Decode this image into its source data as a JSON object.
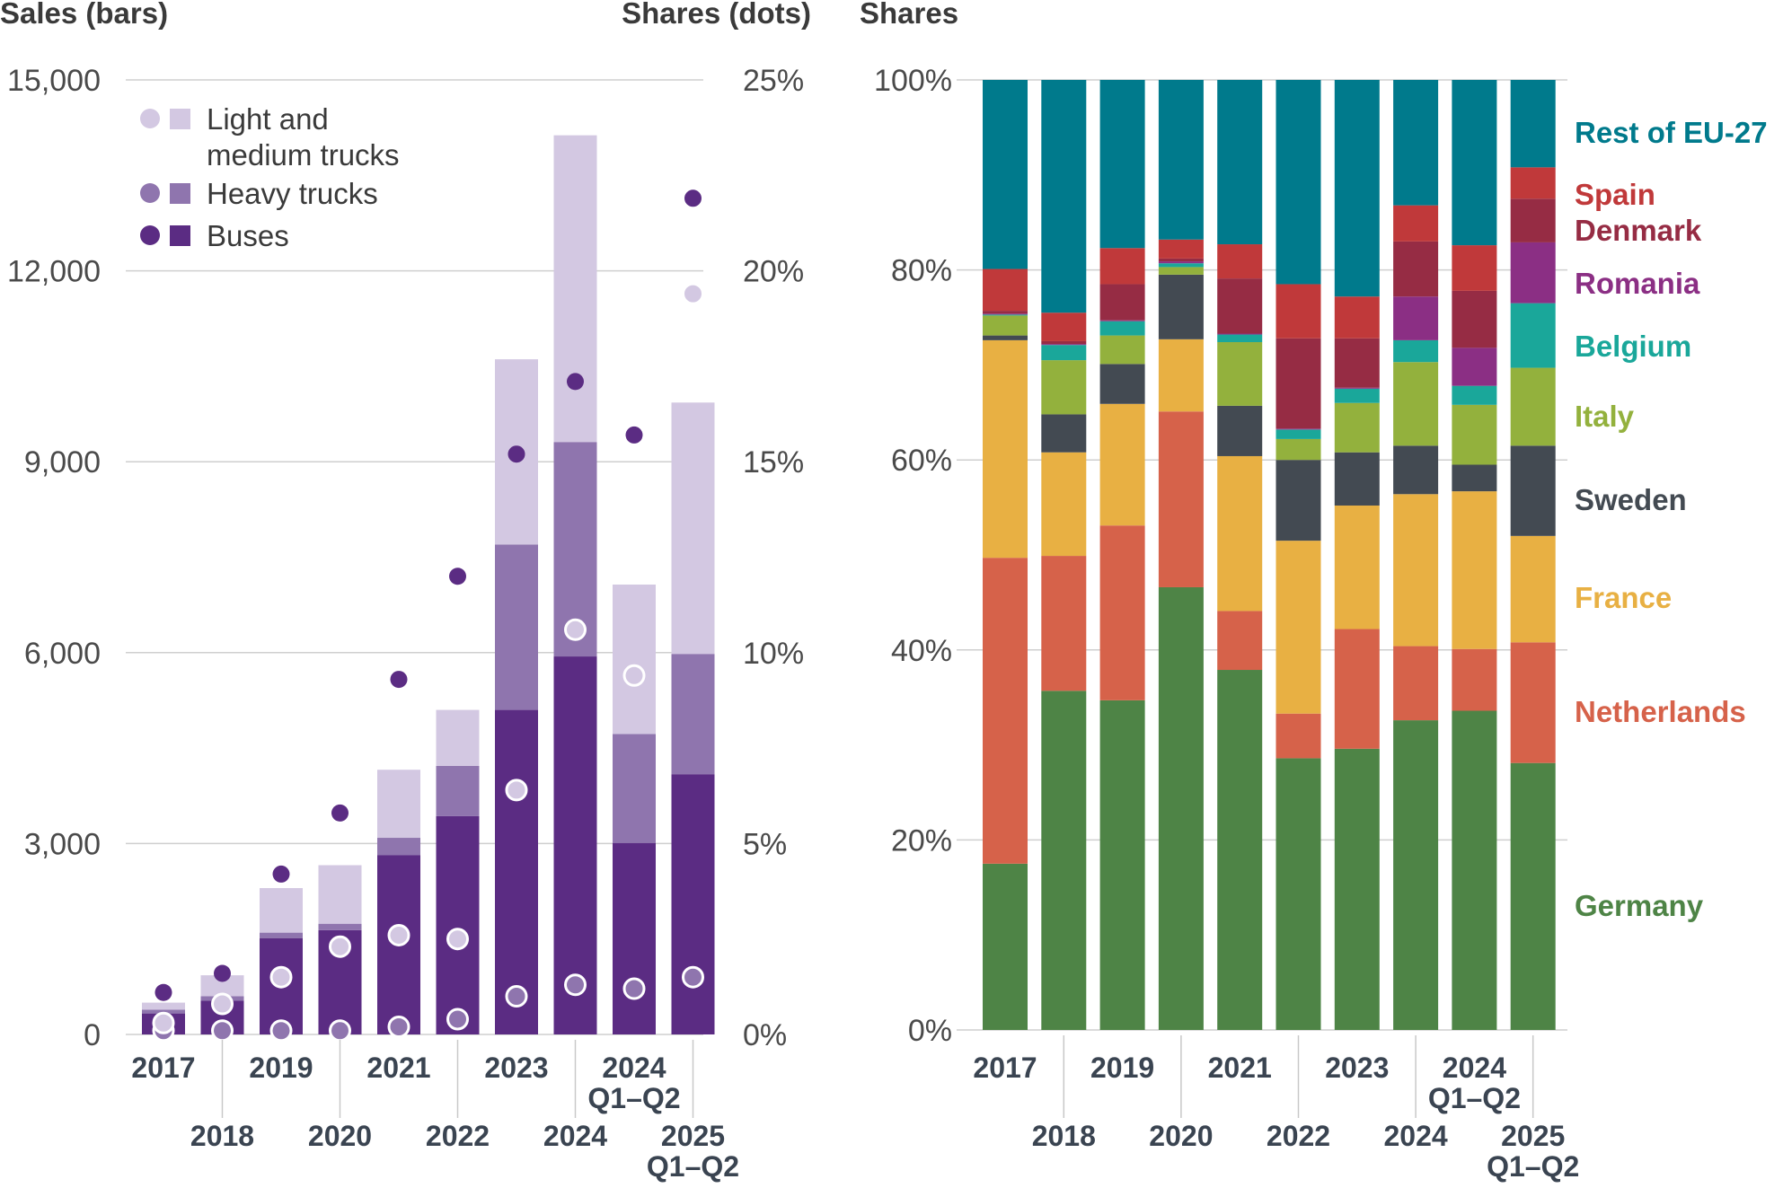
{
  "chart_data": [
    {
      "type": "bar",
      "stacked": true,
      "ylabel": "Sales (bars)",
      "y2label": "Shares (dots)",
      "ylim": [
        0,
        15000
      ],
      "y2lim": [
        0,
        25
      ],
      "yticks": [
        "0",
        "3,000",
        "6,000",
        "9,000",
        "12,000",
        "15,000"
      ],
      "y2ticks": [
        "0%",
        "5%",
        "10%",
        "15%",
        "20%",
        "25%"
      ],
      "categories": [
        {
          "line1": "2017",
          "line2": ""
        },
        {
          "line1": "2018",
          "line2": ""
        },
        {
          "line1": "2019",
          "line2": ""
        },
        {
          "line1": "2020",
          "line2": ""
        },
        {
          "line1": "2021",
          "line2": ""
        },
        {
          "line1": "2022",
          "line2": ""
        },
        {
          "line1": "2023",
          "line2": ""
        },
        {
          "line1": "2024",
          "line2": ""
        },
        {
          "line1": "2024",
          "line2": "Q1–Q2"
        },
        {
          "line1": "2025",
          "line2": "Q1–Q2"
        }
      ],
      "grid": true,
      "legend_position": "top-left",
      "series": [
        {
          "name": "Buses",
          "color": "#5b2c83",
          "bar_values": [
            330,
            530,
            1510,
            1640,
            2820,
            3430,
            5100,
            5940,
            3010,
            4090
          ],
          "share_values": [
            1.1,
            1.6,
            4.2,
            5.8,
            9.3,
            12.0,
            15.2,
            17.1,
            15.7,
            21.9
          ]
        },
        {
          "name": "Heavy trucks",
          "color": "#8f75ae",
          "bar_values": [
            60,
            70,
            90,
            100,
            270,
            790,
            2600,
            3370,
            1710,
            1890
          ],
          "share_values": [
            0.1,
            0.1,
            0.1,
            0.1,
            0.2,
            0.4,
            1.0,
            1.3,
            1.2,
            1.5
          ]
        },
        {
          "name": "Light and medium trucks",
          "color": "#d3c8e2",
          "bar_values": [
            110,
            330,
            700,
            920,
            1070,
            880,
            2910,
            4820,
            2350,
            3950
          ],
          "share_values": [
            0.3,
            0.8,
            1.5,
            2.3,
            2.6,
            2.5,
            6.4,
            10.6,
            9.4,
            19.4
          ]
        }
      ]
    },
    {
      "type": "bar",
      "stacked": true,
      "percent": true,
      "ylabel": "Shares",
      "ylim": [
        0,
        100
      ],
      "yticks": [
        "0%",
        "20%",
        "40%",
        "60%",
        "80%",
        "100%"
      ],
      "categories": [
        {
          "line1": "2017",
          "line2": ""
        },
        {
          "line1": "2018",
          "line2": ""
        },
        {
          "line1": "2019",
          "line2": ""
        },
        {
          "line1": "2020",
          "line2": ""
        },
        {
          "line1": "2021",
          "line2": ""
        },
        {
          "line1": "2022",
          "line2": ""
        },
        {
          "line1": "2023",
          "line2": ""
        },
        {
          "line1": "2024",
          "line2": ""
        },
        {
          "line1": "2024",
          "line2": "Q1–Q2"
        },
        {
          "line1": "2025",
          "line2": "Q1–Q2"
        }
      ],
      "grid": true,
      "legend_position": "right",
      "series": [
        {
          "name": "Germany",
          "color": "#4e8446",
          "values": [
            17.5,
            35.7,
            34.7,
            46.6,
            37.9,
            28.6,
            29.6,
            32.6,
            33.6,
            28.1
          ]
        },
        {
          "name": "Netherlands",
          "color": "#d6624a",
          "values": [
            32.2,
            14.2,
            18.4,
            18.5,
            6.2,
            4.7,
            12.6,
            7.8,
            6.5,
            12.7
          ]
        },
        {
          "name": "France",
          "color": "#e8b043",
          "values": [
            22.9,
            10.9,
            12.8,
            7.6,
            16.3,
            18.2,
            13.0,
            16.0,
            16.6,
            11.2
          ]
        },
        {
          "name": "Sweden",
          "color": "#434a52",
          "values": [
            0.5,
            4.0,
            4.2,
            6.8,
            5.3,
            8.5,
            5.6,
            5.1,
            2.8,
            9.5
          ]
        },
        {
          "name": "Italy",
          "color": "#93b13d",
          "values": [
            2.1,
            5.7,
            3.0,
            0.8,
            6.7,
            2.2,
            5.2,
            8.8,
            6.3,
            8.2
          ]
        },
        {
          "name": "Belgium",
          "color": "#1aa79a",
          "values": [
            0.1,
            1.6,
            1.5,
            0.4,
            0.8,
            1.0,
            1.5,
            2.3,
            2.0,
            6.8
          ]
        },
        {
          "name": "Romania",
          "color": "#8b2f84",
          "values": [
            0.1,
            0.1,
            0.1,
            0.2,
            0.1,
            0.1,
            0.1,
            4.6,
            4.0,
            6.4
          ]
        },
        {
          "name": "Denmark",
          "color": "#962c44",
          "values": [
            0.3,
            0.3,
            3.8,
            0.3,
            5.8,
            9.5,
            5.2,
            5.8,
            6.0,
            4.6
          ]
        },
        {
          "name": "Spain",
          "color": "#c0393a",
          "values": [
            4.4,
            3.0,
            3.8,
            2.0,
            3.6,
            5.7,
            4.4,
            3.8,
            4.8,
            3.3
          ]
        },
        {
          "name": "Rest of EU-27",
          "color": "#007a8c",
          "values": [
            19.9,
            24.5,
            17.7,
            16.8,
            17.3,
            21.5,
            22.8,
            13.2,
            17.4,
            9.2
          ]
        }
      ]
    }
  ]
}
